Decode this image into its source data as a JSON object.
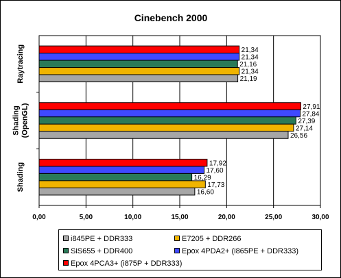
{
  "chart_data": {
    "type": "bar",
    "orientation": "horizontal",
    "title": "Cinebench 2000",
    "categories": [
      "Raytracing",
      "Shading (OpenGL)",
      "Shading"
    ],
    "xlim": [
      0,
      30
    ],
    "xticks": [
      "0,00",
      "5,00",
      "10,00",
      "15,00",
      "20,00",
      "25,00",
      "30,00"
    ],
    "grid": true,
    "legend_position": "bottom",
    "series": [
      {
        "name": "Epox 4PCA3+ (i875P + DDR333)",
        "color": "#ff0000",
        "values": [
          21.34,
          27.91,
          17.92
        ],
        "labels": [
          "21,34",
          "27,91",
          "17,92"
        ]
      },
      {
        "name": "Epox 4PDA2+ (i865PE + DDR333)",
        "color": "#3f49ff",
        "values": [
          21.34,
          27.84,
          17.6
        ],
        "labels": [
          "21,34",
          "27,84",
          "17,60"
        ]
      },
      {
        "name": "SiS655 + DDR400",
        "color": "#2a7a58",
        "values": [
          21.16,
          27.39,
          16.29
        ],
        "labels": [
          "21,16",
          "27,39",
          "16,29"
        ]
      },
      {
        "name": "E7205 + DDR266",
        "color": "#f0b400",
        "values": [
          21.34,
          27.14,
          17.73
        ],
        "labels": [
          "21,34",
          "27,14",
          "17,73"
        ]
      },
      {
        "name": "i845PE + DDR333",
        "color": "#a6a6a6",
        "values": [
          21.19,
          26.56,
          16.6
        ],
        "labels": [
          "21,19",
          "26,56",
          "16,60"
        ]
      }
    ]
  },
  "legend": {
    "items": [
      {
        "name": "i845PE + DDR333",
        "color": "#a6a6a6"
      },
      {
        "name": "E7205 + DDR266",
        "color": "#f0b400"
      },
      {
        "name": "SiS655 + DDR400",
        "color": "#2a7a58"
      },
      {
        "name": "Epox 4PDA2+ (i865PE + DDR333)",
        "color": "#3f49ff"
      },
      {
        "name": "Epox 4PCA3+ (i875P + DDR333)",
        "color": "#ff0000"
      }
    ]
  }
}
